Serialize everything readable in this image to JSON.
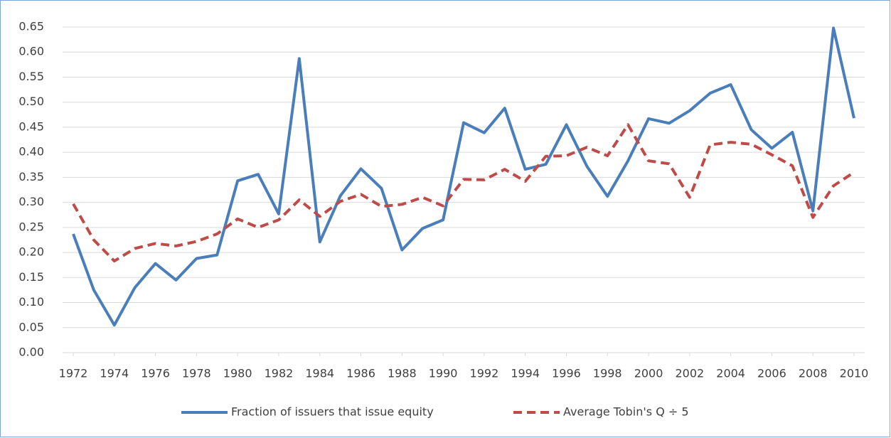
{
  "chart_data": {
    "type": "line",
    "x": [
      1972,
      1973,
      1974,
      1975,
      1976,
      1977,
      1978,
      1979,
      1980,
      1981,
      1982,
      1983,
      1984,
      1985,
      1986,
      1987,
      1988,
      1989,
      1990,
      1991,
      1992,
      1993,
      1994,
      1995,
      1996,
      1997,
      1998,
      1999,
      2000,
      2001,
      2002,
      2003,
      2004,
      2005,
      2006,
      2007,
      2008,
      2009,
      2010
    ],
    "xlim": [
      1972,
      2010
    ],
    "xticks": [
      1972,
      1974,
      1976,
      1978,
      1980,
      1982,
      1984,
      1986,
      1988,
      1990,
      1992,
      1994,
      1996,
      1998,
      2000,
      2002,
      2004,
      2006,
      2008,
      2010
    ],
    "ylim": [
      0,
      0.65
    ],
    "yticks": [
      {
        "value": 0,
        "label": "0.00"
      },
      0.05,
      {
        "value": 0.1,
        "label": "0.10"
      },
      0.15,
      {
        "value": 0.2,
        "label": "0.20"
      },
      0.25,
      {
        "value": 0.3,
        "label": "0.30"
      },
      0.35,
      {
        "value": 0.4,
        "label": "0.40"
      },
      0.45,
      {
        "value": 0.5,
        "label": "0.50"
      },
      0.55,
      {
        "value": 0.6,
        "label": "0.60"
      },
      0.65
    ],
    "grid": true,
    "legend": "bottom",
    "series": [
      {
        "name": "Fraction of issuers that issue equity",
        "color": "#4a7ebb",
        "dash": false,
        "values": [
          0.237,
          0.125,
          0.055,
          0.13,
          0.178,
          0.145,
          0.188,
          0.195,
          0.343,
          0.356,
          0.277,
          0.587,
          0.221,
          0.313,
          0.367,
          0.328,
          0.205,
          0.248,
          0.265,
          0.459,
          0.439,
          0.488,
          0.366,
          0.376,
          0.455,
          0.372,
          0.312,
          0.383,
          0.467,
          0.458,
          0.483,
          0.518,
          0.535,
          0.445,
          0.408,
          0.44,
          0.283,
          0.648,
          0.468
        ]
      },
      {
        "name": "Average Tobin's Q ÷ 5",
        "color": "#be4b48",
        "dash": true,
        "values": [
          0.297,
          0.225,
          0.183,
          0.208,
          0.218,
          0.213,
          0.222,
          0.237,
          0.267,
          0.25,
          0.265,
          0.305,
          0.272,
          0.302,
          0.316,
          0.292,
          0.296,
          0.31,
          0.293,
          0.346,
          0.345,
          0.366,
          0.342,
          0.392,
          0.393,
          0.41,
          0.393,
          0.455,
          0.383,
          0.377,
          0.31,
          0.415,
          0.42,
          0.416,
          0.395,
          0.373,
          0.27,
          0.333,
          0.36
        ]
      }
    ]
  }
}
